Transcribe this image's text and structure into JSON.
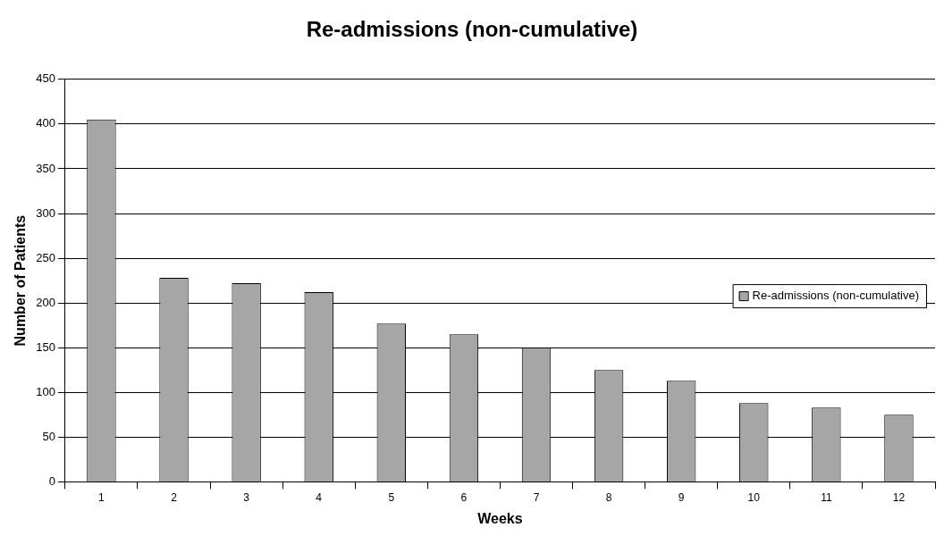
{
  "chart_data": {
    "type": "bar",
    "title": "Re-admissions (non-cumulative)",
    "xlabel": "Weeks",
    "ylabel": "Number of Patients",
    "categories": [
      "1",
      "2",
      "3",
      "4",
      "5",
      "6",
      "7",
      "8",
      "9",
      "10",
      "11",
      "12"
    ],
    "series": [
      {
        "name": "Re-admissions (non-cumulative)",
        "color": "#a6a6a6",
        "values": [
          405,
          228,
          222,
          212,
          177,
          165,
          150,
          125,
          113,
          88,
          83,
          75
        ]
      }
    ],
    "ylim": [
      0,
      450
    ],
    "yticks": [
      0,
      50,
      100,
      150,
      200,
      250,
      300,
      350,
      400,
      450
    ],
    "grid": "y",
    "legend": "right"
  }
}
